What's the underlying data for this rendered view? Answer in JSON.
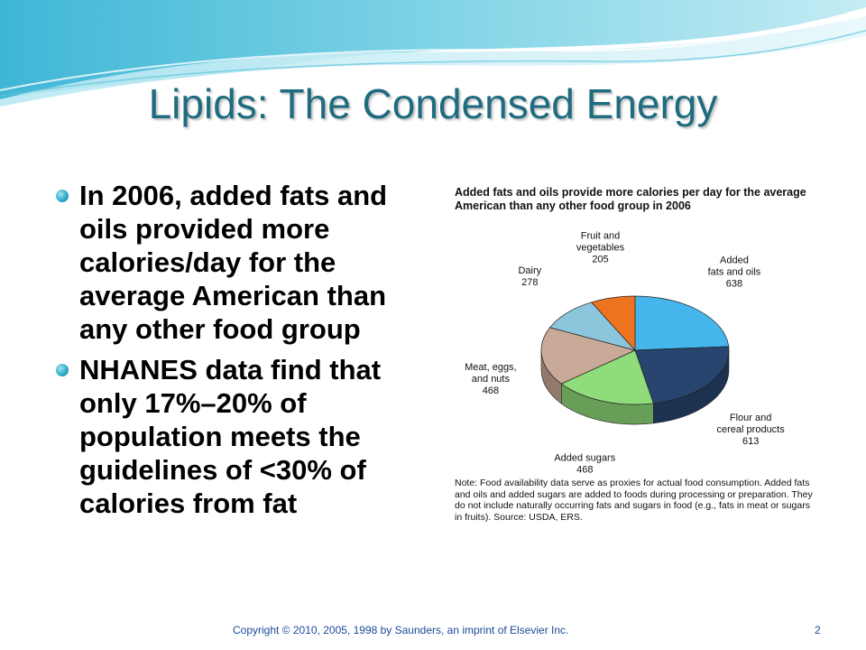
{
  "slide": {
    "title": "Lipids: The Condensed Energy",
    "bullets": [
      "In 2006, added fats and oils provided more calories/day for the average American than any other food group",
      "NHANES data find that only 17%–20% of population meets the guidelines of <30% of calories from fat"
    ],
    "footer": "Copyright © 2010, 2005, 1998 by Saunders, an imprint of Elsevier Inc.",
    "page_number": "2"
  },
  "chart_data": {
    "type": "pie",
    "title": "Added fats and oils provide more calories per day for the average American than any other food group in 2006",
    "slices": [
      {
        "name": "Added fats and oils",
        "lines": [
          "Added",
          "fats and oils"
        ],
        "value": 638,
        "color": "#45b6ec"
      },
      {
        "name": "Flour and cereal products",
        "lines": [
          "Flour and",
          "cereal products"
        ],
        "value": 613,
        "color": "#27456f"
      },
      {
        "name": "Added sugars",
        "lines": [
          "Added sugars"
        ],
        "value": 468,
        "color": "#8fdc7a"
      },
      {
        "name": "Meat, eggs, and nuts",
        "lines": [
          "Meat, eggs,",
          "and nuts"
        ],
        "value": 468,
        "color": "#c9a997"
      },
      {
        "name": "Dairy",
        "lines": [
          "Dairy"
        ],
        "value": 278,
        "color": "#8cc6dc"
      },
      {
        "name": "Fruit and vegetables",
        "lines": [
          "Fruit and",
          "vegetables"
        ],
        "value": 205,
        "color": "#ee7320"
      }
    ],
    "note": "Note: Food availability data serve as proxies for actual food consumption. Added fats and oils and added sugars are added to foods during processing or preparation. They do not include naturally occurring fats and sugars in food (e.g., fats in meat or sugars in fruits). Source: USDA, ERS."
  }
}
